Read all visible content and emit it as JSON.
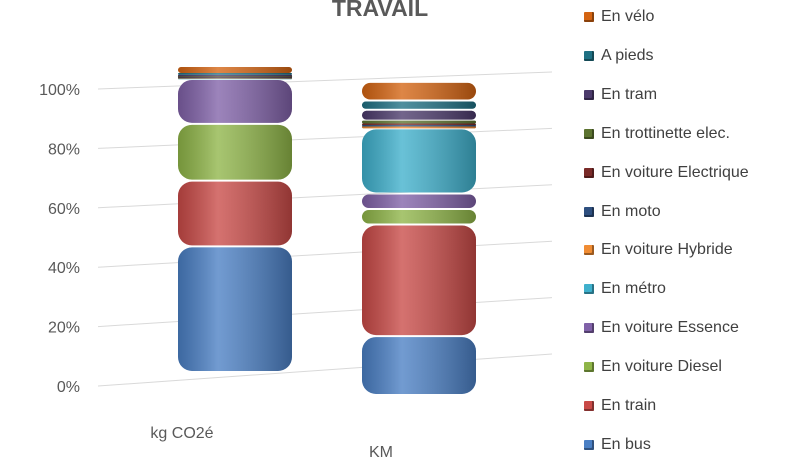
{
  "chart_data": {
    "type": "bar",
    "stacked": "percent",
    "style": "3d-rounded",
    "title": "TRAVAIL",
    "categories": [
      "kg CO2é",
      "KM"
    ],
    "y_ticks": [
      "0%",
      "20%",
      "40%",
      "60%",
      "80%",
      "100%"
    ],
    "ylim": [
      0,
      100
    ],
    "grid": true,
    "legend_position": "right",
    "series": [
      {
        "name": "En bus",
        "color": "#4A7FC4",
        "values": [
          42,
          19
        ]
      },
      {
        "name": "En train",
        "color": "#C94A47",
        "values": [
          22,
          36
        ]
      },
      {
        "name": "En voiture Diesel",
        "color": "#8FB548",
        "values": [
          19,
          5
        ]
      },
      {
        "name": "En voiture Essence",
        "color": "#8061A8",
        "values": [
          15,
          5
        ]
      },
      {
        "name": "En métro",
        "color": "#3FB0CC",
        "values": [
          0.4,
          21
        ]
      },
      {
        "name": "En voiture Hybride",
        "color": "#F08C33",
        "values": [
          0.2,
          0.8
        ]
      },
      {
        "name": "En moto",
        "color": "#2E4F7F",
        "values": [
          0.2,
          0.3
        ]
      },
      {
        "name": "En voiture Electrique",
        "color": "#7A2A28",
        "values": [
          0.2,
          0.5
        ]
      },
      {
        "name": "En trottinette elec.",
        "color": "#5C7330",
        "values": [
          0.2,
          0.9
        ]
      },
      {
        "name": "En tram",
        "color": "#4B3A6B",
        "values": [
          0.2,
          3.5
        ]
      },
      {
        "name": "A pieds",
        "color": "#1F7083",
        "values": [
          0.6,
          3
        ]
      },
      {
        "name": "En vélo",
        "color": "#D46412",
        "values": [
          2,
          6
        ]
      }
    ]
  }
}
